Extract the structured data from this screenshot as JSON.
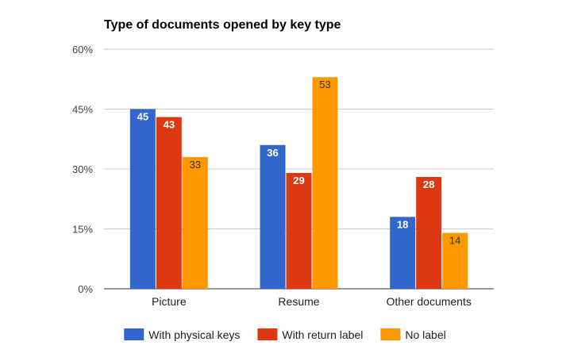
{
  "chart_data": {
    "type": "bar",
    "title": "Type of documents opened by key type",
    "xlabel": "",
    "ylabel": "",
    "categories": [
      "Picture",
      "Resume",
      "Other documents"
    ],
    "ylim": [
      0,
      60
    ],
    "yticks": [
      0,
      15,
      30,
      45,
      60
    ],
    "ytick_labels": [
      "0%",
      "15%",
      "30%",
      "45%",
      "60%"
    ],
    "grid": true,
    "legend_position": "bottom",
    "series": [
      {
        "name": "With physical keys",
        "color": "#3366cc",
        "label_color": "#ffffff",
        "values": [
          45,
          36,
          18
        ]
      },
      {
        "name": "With return label",
        "color": "#dc3912",
        "label_color": "#ffffff",
        "values": [
          43,
          29,
          28
        ]
      },
      {
        "name": "No label",
        "color": "#ff9900",
        "label_color": "#333333",
        "values": [
          33,
          53,
          14
        ]
      }
    ]
  }
}
